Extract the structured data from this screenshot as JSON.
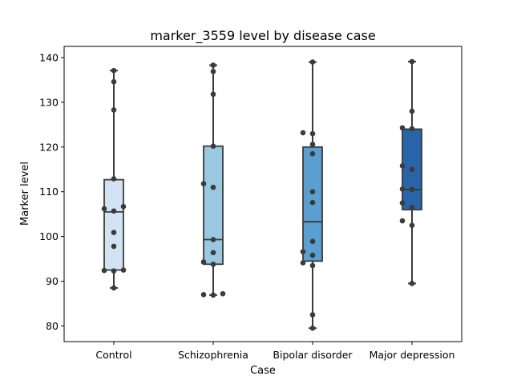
{
  "chart_data": {
    "type": "box",
    "title": "marker_3559 level by disease case",
    "xlabel": "Case",
    "ylabel": "Marker level",
    "ylim": [
      76.5,
      142.5
    ],
    "yticks": [
      80,
      90,
      100,
      110,
      120,
      130,
      140
    ],
    "grid": false,
    "legend": "none",
    "categories": [
      "Control",
      "Schizophrenia",
      "Bipolar disorder",
      "Major depression"
    ],
    "colors": [
      "#d2e3f3",
      "#9ac8e0",
      "#5a9fcf",
      "#2865a8"
    ],
    "boxes": [
      {
        "category": "Control",
        "whisker_low": 88.5,
        "q1": 92.5,
        "median": 105.5,
        "q3": 112.7,
        "whisker_high": 137.1
      },
      {
        "category": "Schizophrenia",
        "whisker_low": 86.9,
        "q1": 93.8,
        "median": 99.3,
        "q3": 120.2,
        "whisker_high": 138.3
      },
      {
        "category": "Bipolar disorder",
        "whisker_low": 79.5,
        "q1": 94.5,
        "median": 103.3,
        "q3": 120.0,
        "whisker_high": 139.0
      },
      {
        "category": "Major depression",
        "whisker_low": 89.5,
        "q1": 106.0,
        "median": 110.5,
        "q3": 124.0,
        "whisker_high": 139.1
      }
    ],
    "points": [
      {
        "category": "Control",
        "values": [
          88.5,
          92.3,
          92.4,
          92.5,
          97.8,
          100.9,
          105.7,
          106.2,
          106.7,
          112.9,
          128.3,
          134.6,
          137.1
        ]
      },
      {
        "category": "Schizophrenia",
        "values": [
          86.9,
          87.0,
          87.2,
          93.8,
          94.3,
          96.4,
          99.3,
          111.0,
          111.8,
          120.2,
          131.8,
          136.9,
          138.3
        ]
      },
      {
        "category": "Bipolar disorder",
        "values": [
          79.5,
          82.5,
          93.5,
          94.1,
          95.8,
          96.6,
          98.9,
          107.6,
          110.0,
          118.5,
          120.6,
          123.0,
          123.2,
          139.0
        ]
      },
      {
        "category": "Major depression",
        "values": [
          89.5,
          102.5,
          103.5,
          106.5,
          107.5,
          110.5,
          110.6,
          115.0,
          115.8,
          124.1,
          124.3,
          128.0,
          139.1
        ]
      }
    ]
  }
}
